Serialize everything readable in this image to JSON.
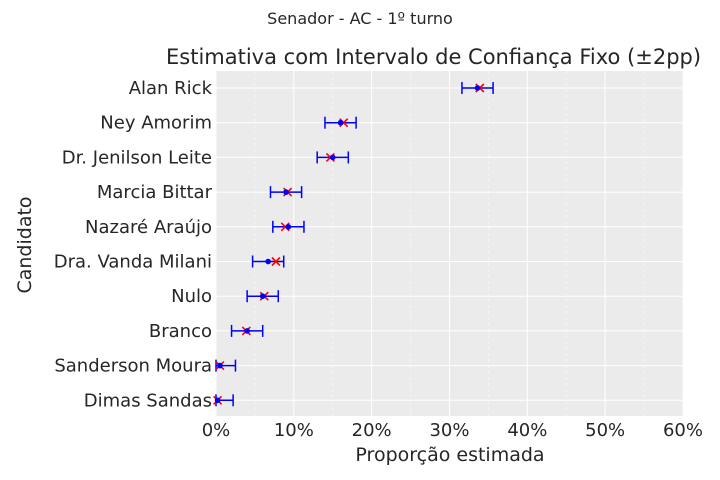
{
  "figure": {
    "suptitle": "Senador - AC - 1º turno"
  },
  "chart_data": {
    "type": "scatter",
    "title": "Estimativa com Intervalo de Confiança Fixo (±2pp)",
    "xlabel": "Proporção estimada",
    "ylabel": "Candidato",
    "xlim": [
      0,
      0.6
    ],
    "xticks": [
      0,
      0.1,
      0.2,
      0.3,
      0.4,
      0.5,
      0.6
    ],
    "xtick_labels": [
      "0%",
      "10%",
      "20%",
      "30%",
      "40%",
      "50%",
      "60%"
    ],
    "grid": true,
    "interval_half_width": 0.02,
    "categories": [
      "Alan Rick",
      "Ney Amorim",
      "Dr. Jenilson Leite",
      "Marcia Bittar",
      "Nazaré Araújo",
      "Dra. Vanda Milani",
      "Nulo",
      "Branco",
      "Sanderson Moura",
      "Dimas Sandas"
    ],
    "series": [
      {
        "marker": "point",
        "values": [
          0.336,
          0.16,
          0.15,
          0.09,
          0.093,
          0.067,
          0.06,
          0.04,
          0.005,
          0.002
        ],
        "ci_low": [
          0.316,
          0.14,
          0.13,
          0.07,
          0.073,
          0.047,
          0.04,
          0.02,
          0.0,
          0.0
        ],
        "ci_high": [
          0.356,
          0.18,
          0.17,
          0.11,
          0.113,
          0.087,
          0.08,
          0.06,
          0.025,
          0.022
        ]
      },
      {
        "marker": "x",
        "values": [
          0.339,
          0.164,
          0.147,
          0.092,
          0.089,
          0.077,
          0.062,
          0.039,
          0.005,
          0.002
        ]
      }
    ],
    "colors": {
      "errorbar": "#0000ff",
      "point": "#0000ff",
      "x_marker": "#ff0000",
      "axes_bg": "#ebebeb",
      "grid": "#ffffff",
      "text": "#262626"
    }
  }
}
